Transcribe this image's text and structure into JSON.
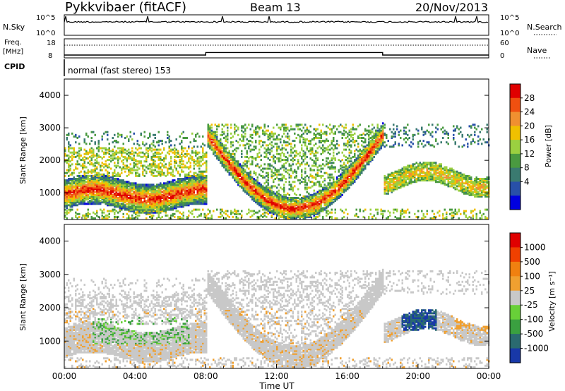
{
  "header": {
    "title": "Pykkvibaer (fitACF)",
    "beam": "Beam 13",
    "date": "20/Nov/2013"
  },
  "status_panels": {
    "nsky": {
      "label": "N.Sky",
      "ticks": [
        "10^5",
        "10^0"
      ]
    },
    "nsearch": {
      "label": "N.Search",
      "ticks": [
        "10^5",
        "10^0"
      ]
    },
    "freq": {
      "label_line1": "Freq.",
      "label_line2": "[MHz]",
      "ticks": [
        "18",
        "8"
      ]
    },
    "nave": {
      "label": "Nave",
      "ticks": [
        "60",
        "0"
      ]
    },
    "cpid": {
      "label": "CPID",
      "text": "normal (fast stereo) 153"
    }
  },
  "x_axis": {
    "label": "Time UT",
    "ticks": [
      "00:00",
      "04:00",
      "08:00",
      "12:00",
      "16:00",
      "20:00",
      "00:00"
    ]
  },
  "panels": {
    "power": {
      "ylabel": "Slant Range [km]",
      "yticks": [
        "4000",
        "3000",
        "2000",
        "1000"
      ],
      "colorbar_label": "Power [dB]",
      "colorbar_ticks": [
        "28",
        "24",
        "20",
        "16",
        "12",
        "8",
        "4"
      ],
      "colors": [
        "#0000e0",
        "#2850a8",
        "#3a7a70",
        "#4a9a40",
        "#9bd040",
        "#f0c000",
        "#f09030",
        "#f05010",
        "#e00000"
      ]
    },
    "velocity": {
      "ylabel": "Slant Range [km]",
      "yticks": [
        "4000",
        "3000",
        "2000",
        "1000"
      ],
      "colorbar_label": "Velocity [m s⁻¹]",
      "colorbar_ticks": [
        "1000",
        "500",
        "100",
        "25",
        "-25",
        "-100",
        "-500",
        "-1000"
      ],
      "colors": [
        "#1838a8",
        "#2a6a70",
        "#3aa040",
        "#68d038",
        "#c8c8c8",
        "#f0a030",
        "#f08010",
        "#f04000",
        "#e00000"
      ]
    }
  },
  "chart_data": [
    {
      "type": "heatmap",
      "name": "Power",
      "x_range_hours": [
        0,
        24
      ],
      "y_range_km": [
        180,
        4500
      ],
      "colorbar_range_db": [
        0,
        32
      ],
      "grid": false
    },
    {
      "type": "heatmap",
      "name": "Velocity",
      "x_range_hours": [
        0,
        24
      ],
      "y_range_km": [
        180,
        4500
      ],
      "colorbar_range_ms": [
        -1000,
        1000
      ],
      "grid": false
    },
    {
      "type": "line",
      "name": "Freq",
      "x": [
        0,
        8,
        8,
        18,
        18,
        24
      ],
      "y": [
        9.5,
        9.5,
        10.8,
        10.8,
        9.5,
        9.5
      ],
      "ylim": [
        8,
        18
      ]
    }
  ]
}
